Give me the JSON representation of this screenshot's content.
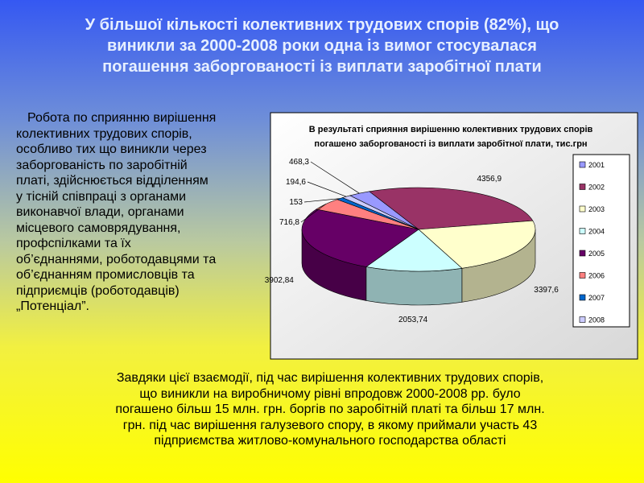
{
  "title_lines": [
    "У більшої кількості  колективних трудових спорів  (82%), що",
    "виникли за 2000-2008 роки одна із вимог стосувалася",
    "погашення заборгованості із виплати заробітної плати"
  ],
  "left_text_lines": [
    "Робота по сприянню  вирішення",
    "колективних трудових спорів,",
    "особливо тих що виникли через",
    "заборгованість по заробітній",
    "платі, здійснюється відділенням",
    "у тісній співпраці з  органами",
    "виконавчої влади, органами",
    "місцевого самоврядування,",
    "профспілками та їх",
    "об’єднаннями, роботодавцями та",
    "об’єднанням промисловців та",
    "підприємців (роботодавців)",
    "„Потенціал”."
  ],
  "bottom_text_lines": [
    "Завдяки цієї взаємодії, під час вирішення колективних трудових спорів,",
    "що виникли на виробничому рівні впродовж 2000-2008 рр. було",
    "погашено більш 15 млн. грн. боргів по заробітній платі  та більш 17 млн.",
    "грн. під час вирішення галузевого спору, в якому приймали участь 43",
    "підприємства житлово-комунального господарства області"
  ],
  "chart_data": {
    "type": "pie",
    "title_lines": [
      "В результаті сприяння вирішенню колективних трудових спорів",
      "погашено заборгованості із виплати заробітної плати, тис.грн"
    ],
    "categories": [
      "2001",
      "2002",
      "2003",
      "2004",
      "2005",
      "2006",
      "2007",
      "2008"
    ],
    "values": [
      468.3,
      4356.9,
      3397.6,
      2053.74,
      3902.84,
      716.8,
      153,
      194.6
    ],
    "value_labels": [
      "468,3",
      "4356,9",
      "3397,6",
      "2053,74",
      "3902,84",
      "716,8",
      "153",
      "194,6"
    ],
    "colors": [
      "#9999ff",
      "#993366",
      "#ffffcc",
      "#ccffff",
      "#660066",
      "#ff8080",
      "#0066cc",
      "#ccccff"
    ],
    "legend": "right"
  }
}
